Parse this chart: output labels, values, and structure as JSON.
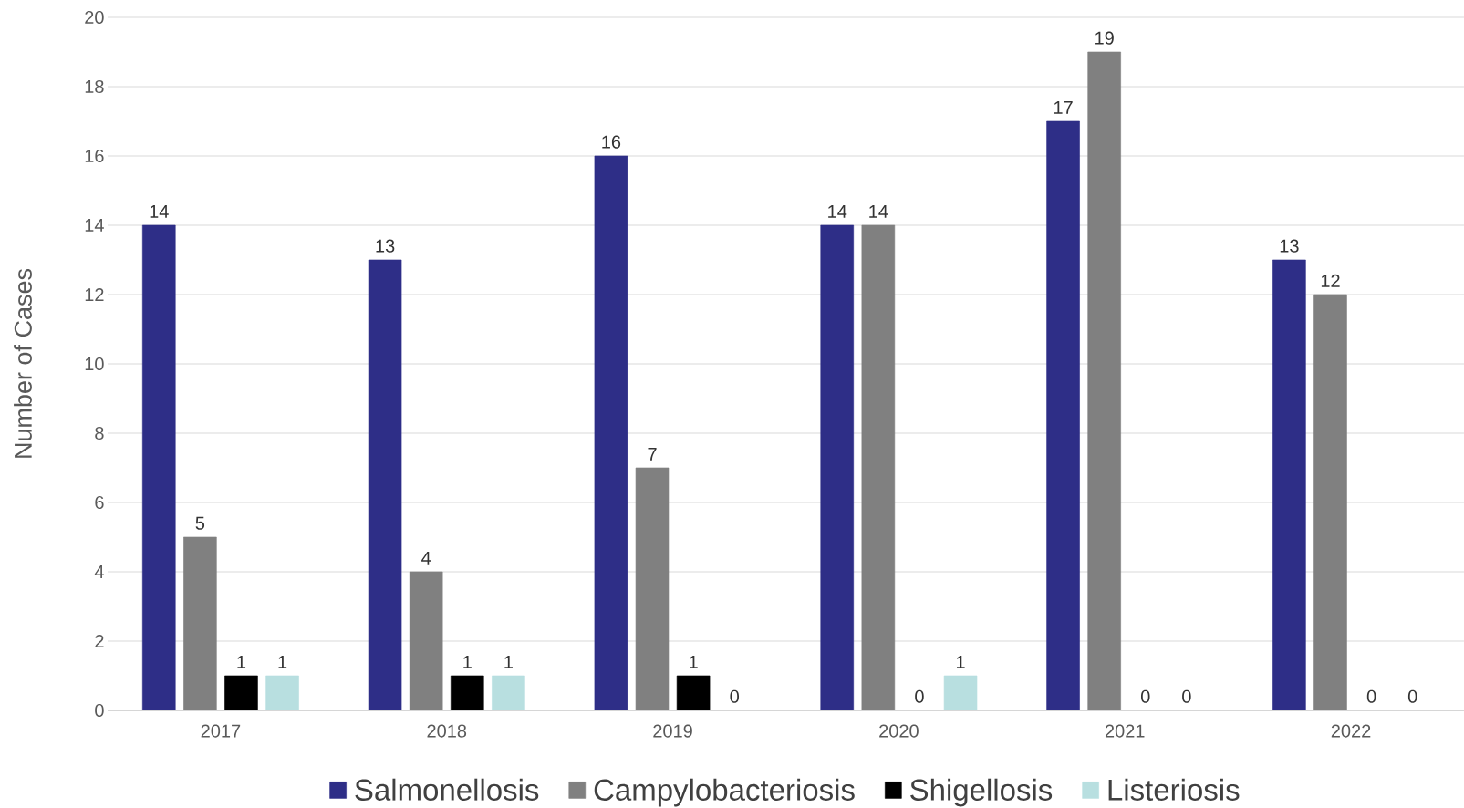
{
  "chart_data": {
    "type": "bar",
    "ylabel": "Number of Cases",
    "categories": [
      "2017",
      "2018",
      "2019",
      "2020",
      "2021",
      "2022"
    ],
    "series": [
      {
        "name": "Salmonellosis",
        "color": "#2e2e87",
        "values": [
          14,
          13,
          16,
          14,
          17,
          13
        ]
      },
      {
        "name": "Campylobacteriosis",
        "color": "#808080",
        "values": [
          5,
          4,
          7,
          14,
          19,
          12
        ]
      },
      {
        "name": "Shigellosis",
        "color": "#000000",
        "values": [
          1,
          1,
          1,
          0,
          0,
          0
        ]
      },
      {
        "name": "Listeriosis",
        "color": "#b8dfe0",
        "values": [
          1,
          1,
          0,
          1,
          0,
          0
        ]
      }
    ],
    "ylim": [
      0,
      20
    ],
    "yticks": [
      0,
      2,
      4,
      6,
      8,
      10,
      12,
      14,
      16,
      18,
      20
    ],
    "grid": "y",
    "legend": "bottom",
    "data_labels": true
  }
}
